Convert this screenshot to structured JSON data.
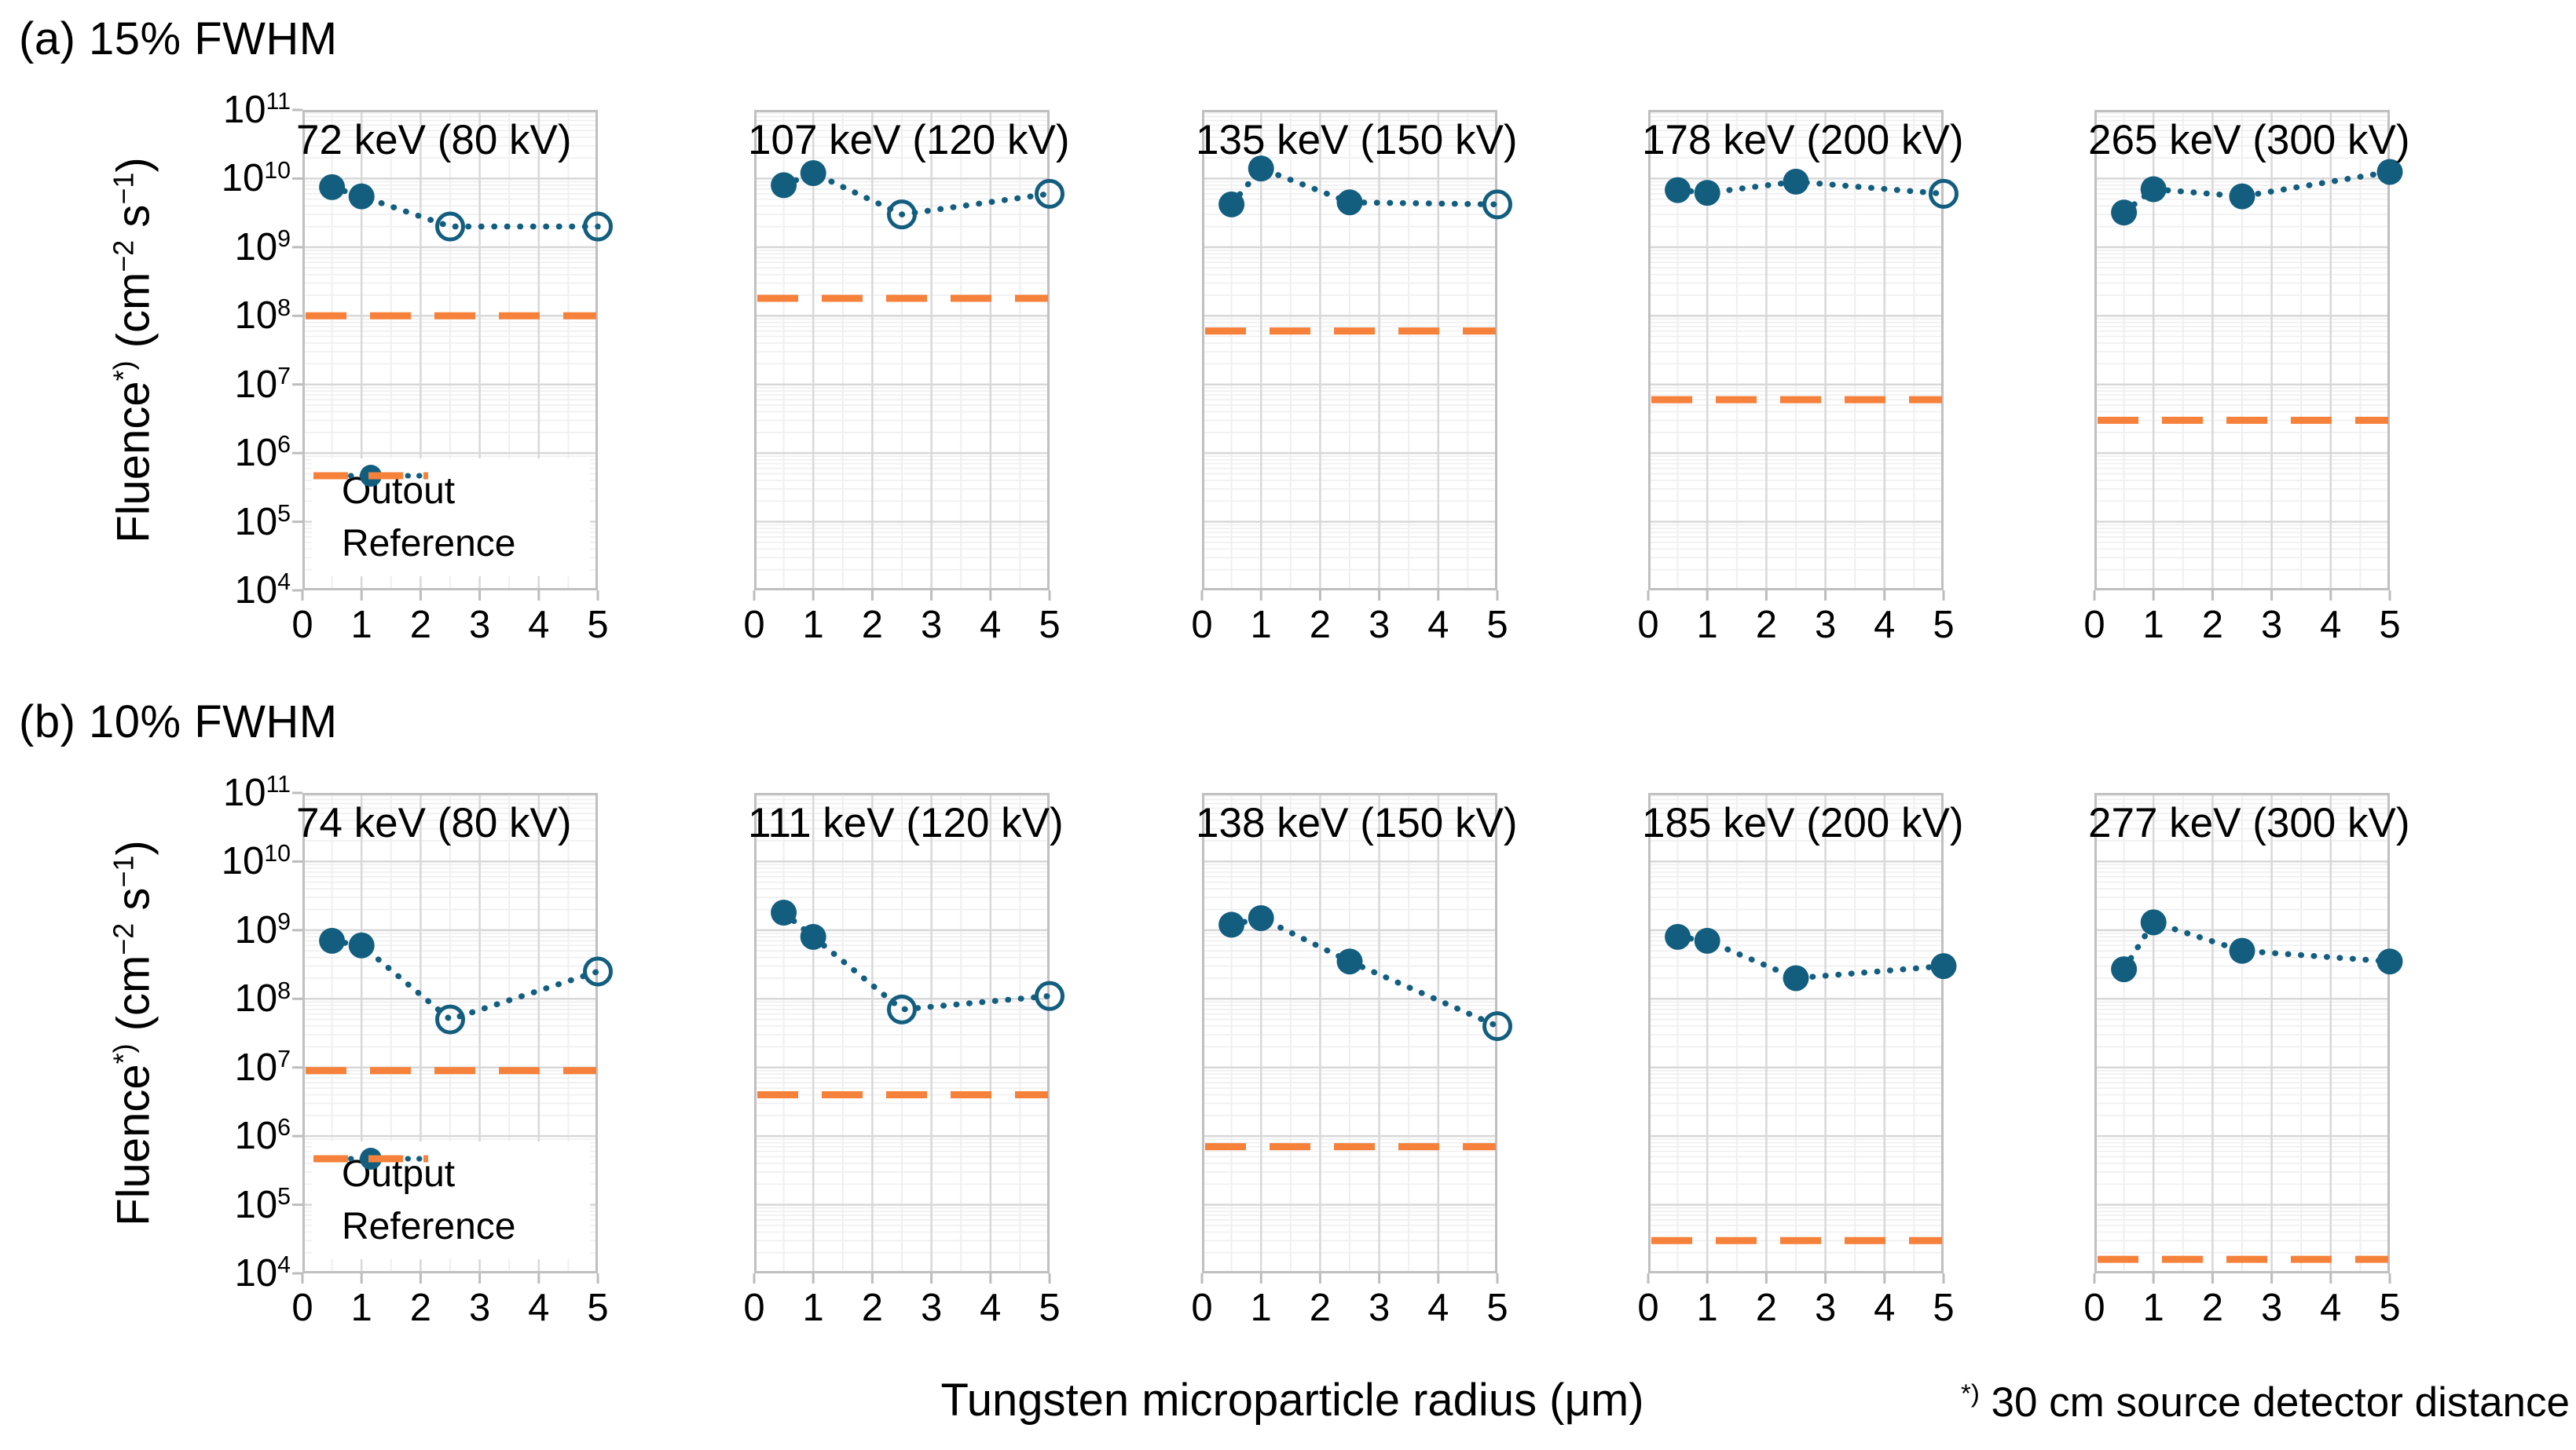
{
  "chart_data": {
    "type": "line",
    "xlabel": "Tungsten microparticle radius (μm)",
    "footnote": {
      "sup": "*)",
      "text": " 30 cm source detector distance"
    },
    "ylabel": {
      "pre": "Fluence",
      "sup_star": "*)",
      "mid": " (cm",
      "exp_a": "−2",
      "mid2": " s",
      "exp_b": "−1",
      "post": ")"
    },
    "ytick_base": "10",
    "ytick_exponents": [
      11,
      10,
      9,
      8,
      7,
      6,
      5,
      4
    ],
    "ylim": [
      10000,
      100000000000
    ],
    "xlim": [
      0,
      5
    ],
    "xticks": [
      0,
      1,
      2,
      3,
      4,
      5
    ],
    "x_values": [
      0.5,
      1,
      2.5,
      5
    ],
    "grid": true,
    "colors": {
      "output": "#135e7f",
      "reference": "#f6813b"
    },
    "rows": [
      {
        "section_label": "(a) 15% FWHM",
        "legend": {
          "output_label": "Outout",
          "reference_label": "Reference"
        },
        "subplots": [
          {
            "title": "72 keV (80 kV)",
            "output": [
              7500000000.0,
              5500000000.0,
              2000000000.0,
              2000000000.0
            ],
            "open_markers": [
              false,
              false,
              true,
              true
            ],
            "reference": 100000000.0
          },
          {
            "title": "107 keV (120 kV)",
            "output": [
              8000000000.0,
              12000000000.0,
              3000000000.0,
              6000000000.0
            ],
            "open_markers": [
              false,
              false,
              true,
              true
            ],
            "reference": 180000000.0
          },
          {
            "title": "135 keV (150 kV)",
            "output": [
              4200000000.0,
              14000000000.0,
              4500000000.0,
              4200000000.0
            ],
            "open_markers": [
              false,
              false,
              false,
              true
            ],
            "reference": 60000000.0
          },
          {
            "title": "178 keV (200 kV)",
            "output": [
              6800000000.0,
              6200000000.0,
              9000000000.0,
              6000000000.0
            ],
            "open_markers": [
              false,
              false,
              false,
              true
            ],
            "reference": 6000000.0
          },
          {
            "title": "265 keV (300 kV)",
            "output": [
              3200000000.0,
              7000000000.0,
              5500000000.0,
              12500000000.0
            ],
            "open_markers": [
              false,
              false,
              false,
              false
            ],
            "reference": 3000000.0
          }
        ]
      },
      {
        "section_label": "(b) 10% FWHM",
        "legend": {
          "output_label": "Output",
          "reference_label": "Reference"
        },
        "subplots": [
          {
            "title": "74 keV (80 kV)",
            "output": [
              700000000.0,
              600000000.0,
              50000000.0,
              250000000.0
            ],
            "open_markers": [
              false,
              false,
              true,
              true
            ],
            "reference": 9000000.0
          },
          {
            "title": "111 keV (120 kV)",
            "output": [
              1800000000.0,
              800000000.0,
              70000000.0,
              110000000.0
            ],
            "open_markers": [
              false,
              false,
              true,
              true
            ],
            "reference": 4000000.0
          },
          {
            "title": "138 keV (150 kV)",
            "output": [
              1200000000.0,
              1500000000.0,
              350000000.0,
              40000000.0
            ],
            "open_markers": [
              false,
              false,
              false,
              true
            ],
            "reference": 700000.0
          },
          {
            "title": "185 keV (200 kV)",
            "output": [
              800000000.0,
              700000000.0,
              200000000.0,
              300000000.0
            ],
            "open_markers": [
              false,
              false,
              false,
              false
            ],
            "reference": 30000.0
          },
          {
            "title": "277 keV (300 kV)",
            "output": [
              270000000.0,
              1300000000.0,
              500000000.0,
              350000000.0
            ],
            "open_markers": [
              false,
              false,
              false,
              false
            ],
            "reference": 16000.0
          }
        ]
      }
    ]
  }
}
